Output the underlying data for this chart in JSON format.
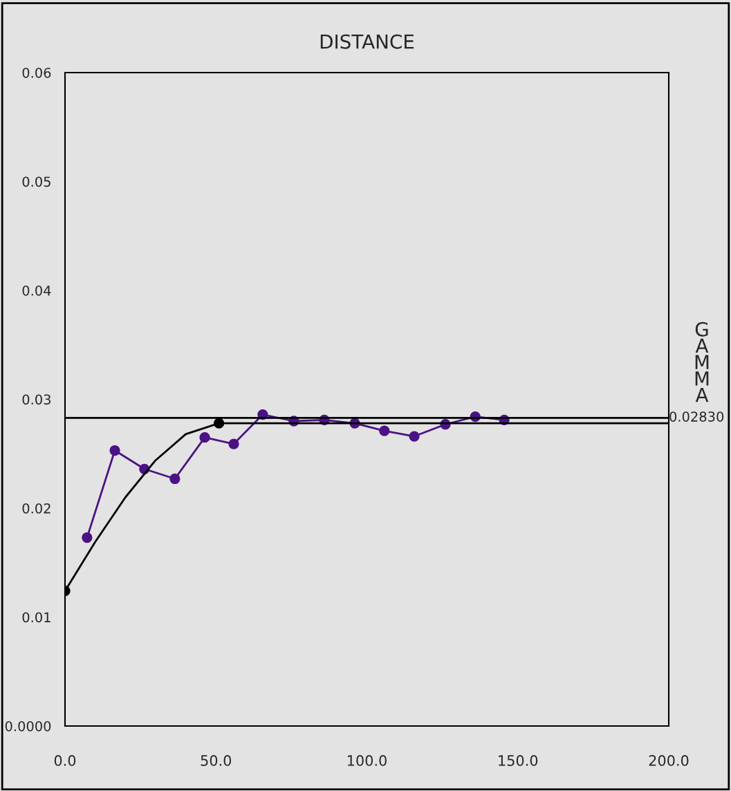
{
  "chart_data": {
    "type": "line",
    "title": "DISTANCE",
    "ylabel": "GAMMA",
    "xlim": [
      0,
      200
    ],
    "xticks": [
      {
        "value": 0,
        "label": "0.0"
      },
      {
        "value": 50,
        "label": "50.0"
      },
      {
        "value": 100,
        "label": "100.0"
      },
      {
        "value": 150,
        "label": "150.0"
      },
      {
        "value": 200,
        "label": "200.0"
      }
    ],
    "ylim": [
      0,
      0.06
    ],
    "yticks": [
      {
        "value": 0,
        "label": "0.0000"
      },
      0.01,
      0.02,
      0.03,
      0.04,
      0.05,
      0.06
    ],
    "grid": false,
    "legend": false,
    "series": [
      {
        "color": "#4b1285",
        "marker": "circle",
        "x": [
          7.3,
          16.5,
          26.3,
          36.4,
          46.3,
          55.9,
          65.5,
          75.8,
          85.9,
          96.0,
          105.8,
          115.7,
          126.0,
          135.9,
          145.5
        ],
        "values": [
          0.0173,
          0.0253,
          0.0236,
          0.0227,
          0.0265,
          0.0259,
          0.0286,
          0.028,
          0.0281,
          0.0278,
          0.0271,
          0.0266,
          0.0277,
          0.0284,
          0.0281
        ]
      },
      {
        "color": "#000000",
        "marker": "none",
        "x": [
          0,
          10,
          20,
          30,
          40,
          51,
          200
        ],
        "values": [
          0.0124,
          0.0169,
          0.021,
          0.0244,
          0.0268,
          0.0278,
          0.0278
        ]
      },
      {
        "type": "scatter",
        "color": "#000000",
        "marker": "circle",
        "x": [
          0,
          51
        ],
        "values": [
          0.0124,
          0.0278
        ]
      }
    ],
    "ref_lines": [
      {
        "axis": "y",
        "value": 0.0283,
        "label": "0.02830",
        "color": "#000000"
      }
    ]
  }
}
